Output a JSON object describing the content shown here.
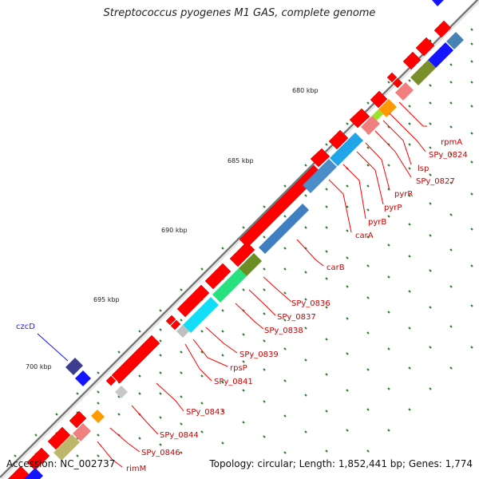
{
  "title": "Streptococcus pyogenes M1 GAS, complete genome",
  "footer": {
    "accession": "Accession: NC_002737",
    "summary": "Topology: circular; Length: 1,852,441 bp; Genes: 1,774"
  },
  "colors": {
    "backbone": "#888888",
    "forward_gene": "#ff0000",
    "label_line": "#ff0000",
    "label_text": "#cc0000",
    "tick": "#2e7d32",
    "czcD": "#1a1aff"
  },
  "position_labels": [
    "680 kbp",
    "685 kbp",
    "690 kbp",
    "695 kbp",
    "700 kbp"
  ],
  "gene_labels": [
    "rpmA",
    "SPy_0824",
    "lsp",
    "SPy_0827",
    "pyrR",
    "pyrP",
    "pyrB",
    "carA",
    "carB",
    "SPy_0836",
    "SPy_0837",
    "SPy_0838",
    "SPy_0839",
    "rpsP",
    "SPy_0841",
    "SPy_0843",
    "SPy_0844",
    "SPy_0846",
    "rimM"
  ],
  "other_labels": {
    "czcD": "czcD"
  }
}
